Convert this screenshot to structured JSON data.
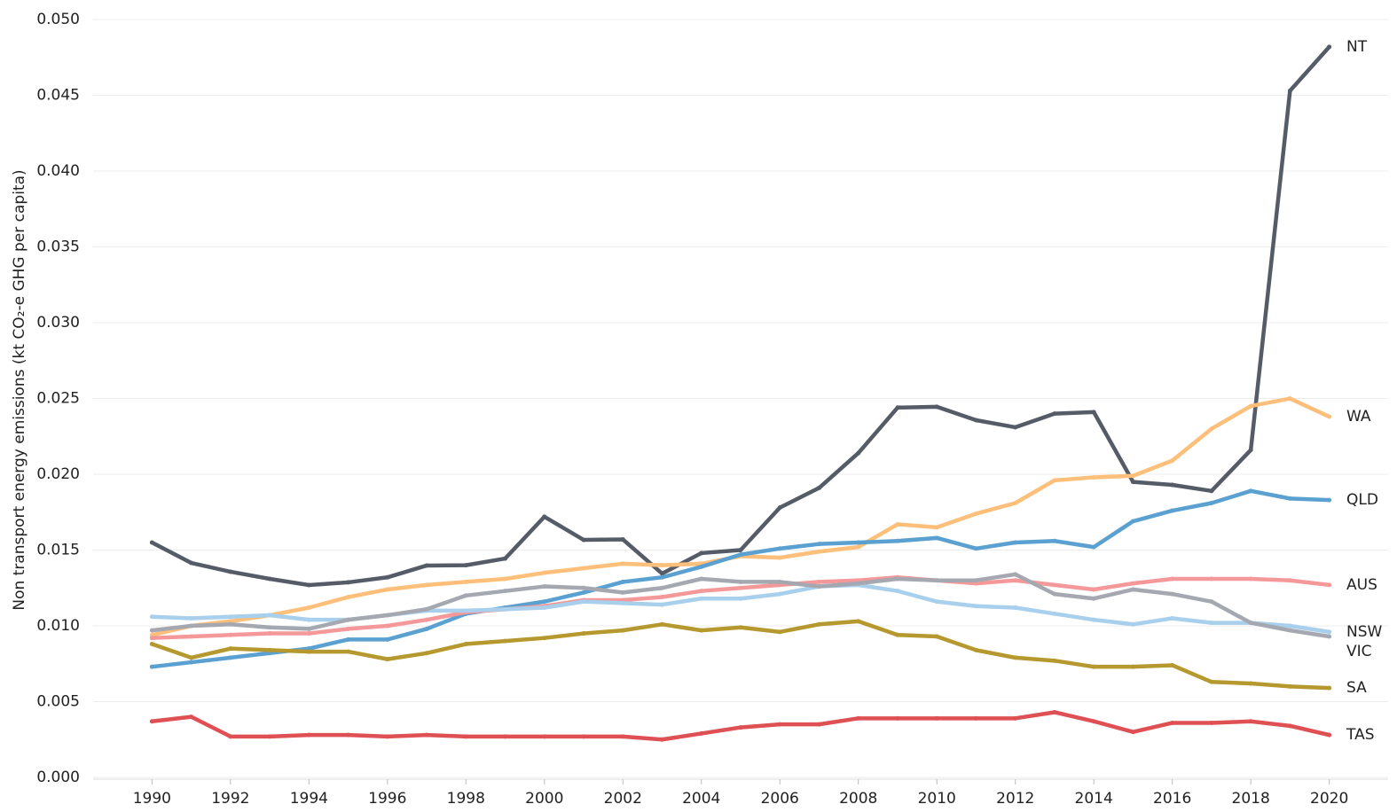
{
  "chart_data": {
    "type": "line",
    "y_label": "Non transport energy emissions (kt CO₂-e  GHG per capita)",
    "x": [
      1990,
      1991,
      1992,
      1993,
      1994,
      1995,
      1996,
      1997,
      1998,
      1999,
      2000,
      2001,
      2002,
      2003,
      2004,
      2005,
      2006,
      2007,
      2008,
      2009,
      2010,
      2011,
      2012,
      2013,
      2014,
      2015,
      2016,
      2017,
      2018,
      2019,
      2020
    ],
    "xlim": [
      1988.5,
      2021.5
    ],
    "xticks": [
      1990,
      1992,
      1994,
      1996,
      1998,
      2000,
      2002,
      2004,
      2006,
      2008,
      2010,
      2012,
      2014,
      2016,
      2018,
      2020
    ],
    "ylim": [
      0,
      0.0505
    ],
    "yticks": [
      {
        "value": 0,
        "label": "0.000"
      },
      {
        "value": 0.005,
        "label": "0.005"
      },
      {
        "value": 0.01,
        "label": "0.010"
      },
      {
        "value": 0.015,
        "label": "0.015"
      },
      {
        "value": 0.02,
        "label": "0.020"
      },
      {
        "value": 0.025,
        "label": "0.025"
      },
      {
        "value": 0.03,
        "label": "0.030"
      },
      {
        "value": 0.035,
        "label": "0.035"
      },
      {
        "value": 0.04,
        "label": "0.040"
      },
      {
        "value": 0.045,
        "label": "0.045"
      },
      {
        "value": 0.05,
        "label": "0.050"
      }
    ],
    "grid": true,
    "series": [
      {
        "name": "NT",
        "color": "#555c67",
        "values": [
          0.0155,
          0.01415,
          0.01357,
          0.0131,
          0.01269,
          0.01287,
          0.0132,
          0.01398,
          0.014,
          0.01444,
          0.0172,
          0.01567,
          0.0157,
          0.01345,
          0.0148,
          0.015,
          0.0178,
          0.0191,
          0.0214,
          0.0244,
          0.02445,
          0.02357,
          0.0231,
          0.024,
          0.0241,
          0.0195,
          0.0193,
          0.0189,
          0.0216,
          0.0453,
          0.0482
        ]
      },
      {
        "name": "WA",
        "color": "#fdbf7a",
        "values": [
          0.0094,
          0.01,
          0.0103,
          0.0107,
          0.0112,
          0.0119,
          0.0124,
          0.0127,
          0.0129,
          0.0131,
          0.0135,
          0.0138,
          0.0141,
          0.014,
          0.0141,
          0.0146,
          0.0145,
          0.0149,
          0.0152,
          0.0167,
          0.0165,
          0.0174,
          0.0181,
          0.0196,
          0.0198,
          0.0199,
          0.0209,
          0.023,
          0.0245,
          0.025,
          0.0238
        ]
      },
      {
        "name": "QLD",
        "color": "#5aa0d0",
        "values": [
          0.0073,
          0.0076,
          0.0079,
          0.0082,
          0.0085,
          0.0091,
          0.0091,
          0.0098,
          0.0108,
          0.0112,
          0.0116,
          0.0122,
          0.0129,
          0.0132,
          0.0139,
          0.0147,
          0.0151,
          0.0154,
          0.0155,
          0.0156,
          0.0158,
          0.0151,
          0.0155,
          0.0156,
          0.0152,
          0.0169,
          0.0176,
          0.0181,
          0.0189,
          0.0184,
          0.0183
        ]
      },
      {
        "name": "AUS",
        "color": "#f4989a",
        "values": [
          0.0092,
          0.0093,
          0.0094,
          0.0095,
          0.0095,
          0.0098,
          0.01,
          0.0104,
          0.0109,
          0.0111,
          0.0113,
          0.0117,
          0.0117,
          0.0119,
          0.0123,
          0.0125,
          0.0127,
          0.0129,
          0.013,
          0.0132,
          0.013,
          0.0128,
          0.013,
          0.0127,
          0.0124,
          0.0128,
          0.0131,
          0.0131,
          0.0131,
          0.013,
          0.0127
        ]
      },
      {
        "name": "NSW",
        "color": "#a8cfec",
        "values": [
          0.0106,
          0.0105,
          0.0106,
          0.0107,
          0.0104,
          0.0104,
          0.0107,
          0.011,
          0.011,
          0.0111,
          0.0112,
          0.0116,
          0.0115,
          0.0114,
          0.0118,
          0.0118,
          0.0121,
          0.0126,
          0.0127,
          0.0123,
          0.0116,
          0.0113,
          0.0112,
          0.0108,
          0.0104,
          0.0101,
          0.0105,
          0.0102,
          0.0102,
          0.01,
          0.0096
        ]
      },
      {
        "name": "VIC",
        "color": "#a5a8b0",
        "values": [
          0.0097,
          0.01,
          0.0101,
          0.0099,
          0.0098,
          0.0104,
          0.0107,
          0.0111,
          0.012,
          0.0123,
          0.0126,
          0.0125,
          0.0122,
          0.0125,
          0.0131,
          0.0129,
          0.0129,
          0.0126,
          0.0128,
          0.0131,
          0.013,
          0.013,
          0.0134,
          0.0121,
          0.0118,
          0.0124,
          0.0121,
          0.0116,
          0.0102,
          0.0097,
          0.0093
        ]
      },
      {
        "name": "SA",
        "color": "#b5982e",
        "values": [
          0.0088,
          0.0079,
          0.0085,
          0.0084,
          0.0083,
          0.0083,
          0.0078,
          0.0082,
          0.0088,
          0.009,
          0.0092,
          0.0095,
          0.0097,
          0.0101,
          0.0097,
          0.0099,
          0.0096,
          0.0101,
          0.0103,
          0.0094,
          0.0093,
          0.0084,
          0.0079,
          0.0077,
          0.0073,
          0.0073,
          0.0074,
          0.0063,
          0.0062,
          0.006,
          0.0059
        ]
      },
      {
        "name": "TAS",
        "color": "#de5053",
        "values": [
          0.0037,
          0.004,
          0.0027,
          0.0027,
          0.0028,
          0.0028,
          0.0027,
          0.0028,
          0.0027,
          0.0027,
          0.0027,
          0.0027,
          0.0027,
          0.0025,
          0.0029,
          0.0033,
          0.0035,
          0.0035,
          0.0039,
          0.0039,
          0.0039,
          0.0039,
          0.0039,
          0.0043,
          0.0037,
          0.003,
          0.0036,
          0.0036,
          0.0037,
          0.0034,
          0.0028
        ]
      }
    ]
  }
}
